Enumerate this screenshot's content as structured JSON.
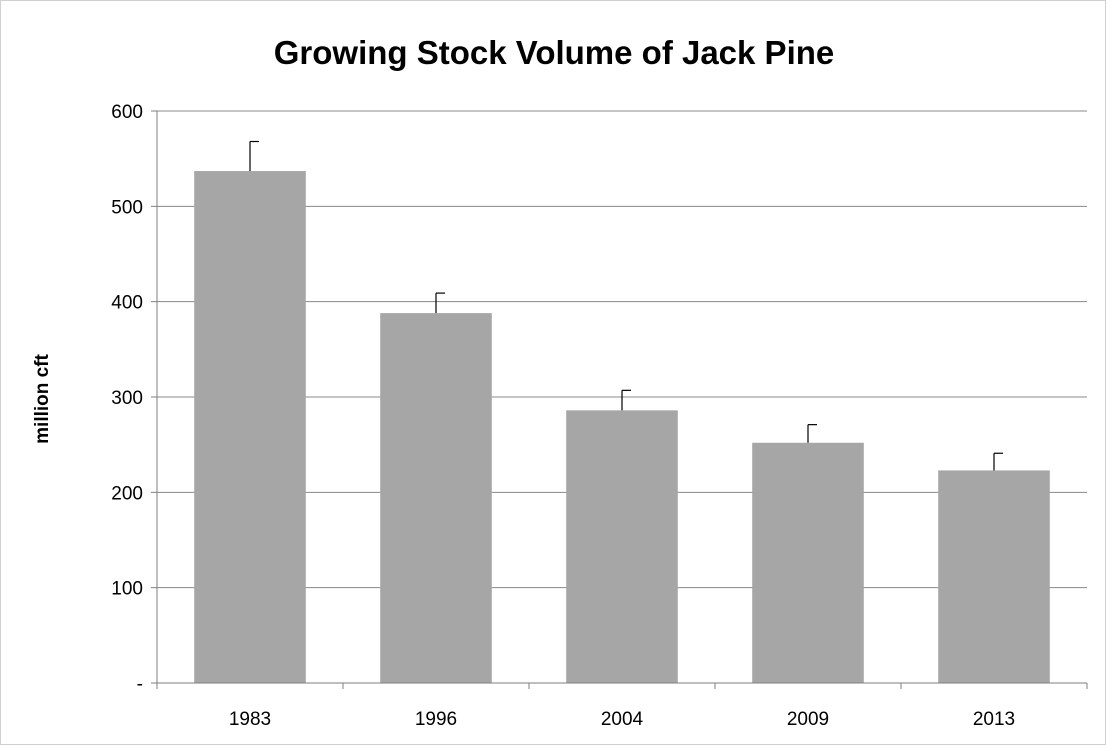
{
  "chart_data": {
    "type": "bar",
    "title": "Growing Stock Volume of Jack Pine",
    "xlabel": "",
    "ylabel": "million cft",
    "categories": [
      "1983",
      "1996",
      "2004",
      "2009",
      "2013"
    ],
    "values": [
      537,
      388,
      286,
      252,
      223
    ],
    "error_upper": [
      568,
      409,
      307,
      271,
      241
    ],
    "ylim": [
      0,
      600
    ],
    "yticks": [
      0,
      100,
      200,
      300,
      400,
      500,
      600
    ],
    "ytick_labels": [
      "-",
      "100",
      "200",
      "300",
      "400",
      "500",
      "600"
    ],
    "grid": true,
    "legend": "none",
    "bar_color": "#a6a6a6",
    "grid_color": "#888888",
    "axis_color": "#7f7f7f",
    "error_bar_color": "#000000"
  }
}
